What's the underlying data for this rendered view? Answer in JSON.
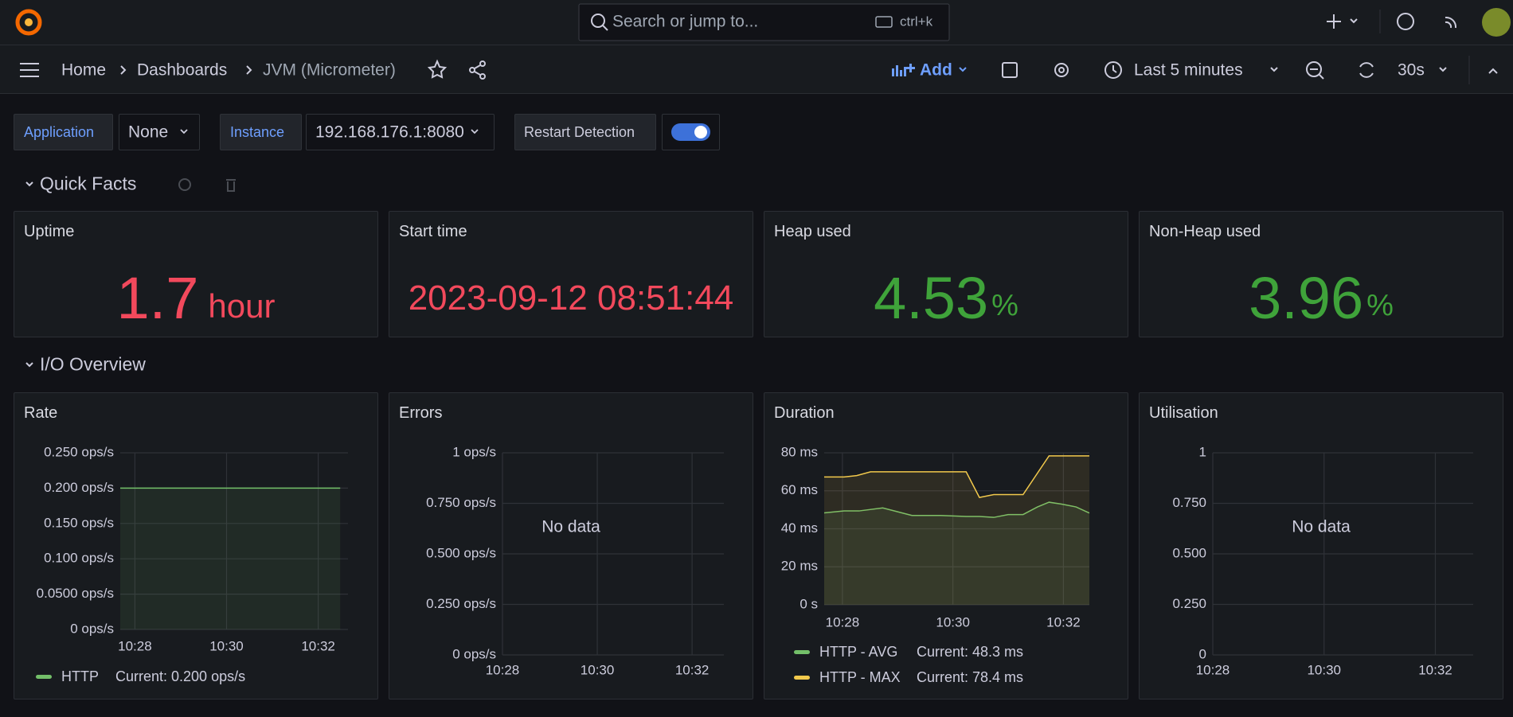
{
  "header": {
    "search_placeholder": "Search or jump to...",
    "search_shortcut": "ctrl+k"
  },
  "breadcrumbs": [
    "Home",
    "Dashboards",
    "JVM (Micrometer)"
  ],
  "toolbar": {
    "add": "Add",
    "time_range": "Last 5 minutes",
    "refresh": "30s"
  },
  "variables": {
    "application_label": "Application",
    "application_value": "None",
    "instance_label": "Instance",
    "instance_value": "192.168.176.1:8080",
    "restart_label": "Restart Detection"
  },
  "rows": [
    {
      "title": "Quick Facts",
      "panels": [
        {
          "title": "Uptime",
          "value": 1.7,
          "unit": "hour",
          "color": "#f2495c"
        },
        {
          "title": "Start time",
          "value": "2023-09-12 08:51:44",
          "color": "#f2495c"
        },
        {
          "title": "Heap used",
          "value": 4.53,
          "unit": "%",
          "color": "#3fa33a"
        },
        {
          "title": "Non-Heap used",
          "value": 3.96,
          "unit": "%",
          "color": "#3fa33a"
        }
      ]
    },
    {
      "title": "I/O Overview",
      "panels": [
        {
          "type": "line",
          "title": "Rate",
          "grid": true,
          "xlim": [
            27.68,
            32.65
          ],
          "xticks": [
            {
              "value": 28,
              "label": "10:28"
            },
            {
              "value": 30,
              "label": "10:30"
            },
            {
              "value": 32,
              "label": "10:32"
            }
          ],
          "ylim": [
            0,
            0.25
          ],
          "yticks": [
            {
              "value": 0,
              "label": "0 ops/s"
            },
            {
              "value": 0.05,
              "label": "0.0500 ops/s"
            },
            {
              "value": 0.1,
              "label": "0.100 ops/s"
            },
            {
              "value": 0.15,
              "label": "0.150 ops/s"
            },
            {
              "value": 0.2,
              "label": "0.200 ops/s"
            },
            {
              "value": 0.25,
              "label": "0.250 ops/s"
            }
          ],
          "series": [
            {
              "name": "HTTP",
              "color": "#73bf69",
              "legend_value": "Current: 0.200 ops/s",
              "x": [
                27.68,
                32.48
              ],
              "values": [
                0.2,
                0.2
              ]
            }
          ]
        },
        {
          "type": "line",
          "title": "Errors",
          "grid": true,
          "message": "No data",
          "xlim": [
            28,
            32.67
          ],
          "xticks": [
            {
              "value": 28,
              "label": "10:28"
            },
            {
              "value": 30,
              "label": "10:30"
            },
            {
              "value": 32,
              "label": "10:32"
            }
          ],
          "ylim": [
            0,
            1
          ],
          "yticks": [
            {
              "value": 0,
              "label": "0 ops/s"
            },
            {
              "value": 0.25,
              "label": "0.250 ops/s"
            },
            {
              "value": 0.5,
              "label": "0.500 ops/s"
            },
            {
              "value": 0.75,
              "label": "0.750 ops/s"
            },
            {
              "value": 1,
              "label": "1 ops/s"
            }
          ],
          "series": []
        },
        {
          "type": "line",
          "title": "Duration",
          "grid": true,
          "xlim": [
            27.67,
            32.47
          ],
          "xticks": [
            {
              "value": 28,
              "label": "10:28"
            },
            {
              "value": 30,
              "label": "10:30"
            },
            {
              "value": 32,
              "label": "10:32"
            }
          ],
          "ylim": [
            0,
            80
          ],
          "yticks": [
            {
              "value": 0,
              "label": "0 s"
            },
            {
              "value": 20,
              "label": "20 ms"
            },
            {
              "value": 40,
              "label": "40 ms"
            },
            {
              "value": 60,
              "label": "60 ms"
            },
            {
              "value": 80,
              "label": "80 ms"
            }
          ],
          "series": [
            {
              "name": "HTTP - AVG",
              "color": "#73bf69",
              "legend_value": "Current: 48.3 ms",
              "x": [
                27.67,
                28.03,
                28.3,
                28.73,
                29.26,
                29.78,
                30.24,
                30.48,
                30.74,
                31.0,
                31.27,
                31.53,
                31.74,
                31.97,
                32.23,
                32.47
              ],
              "values": [
                48.4,
                49.4,
                49.4,
                51,
                47,
                47,
                46.5,
                46.5,
                46,
                47.5,
                47.5,
                51.5,
                54,
                53,
                51.5,
                48.3
              ]
            },
            {
              "name": "HTTP - MAX",
              "color": "#f2c94c",
              "legend_value": "Current: 78.4 ms",
              "x": [
                27.67,
                28.03,
                28.26,
                28.51,
                30.24,
                30.48,
                30.74,
                31.27,
                31.74,
                32.47
              ],
              "values": [
                67.3,
                67.3,
                68,
                70,
                70,
                56.5,
                58,
                58,
                78.4,
                78.4
              ]
            }
          ]
        },
        {
          "type": "line",
          "title": "Utilisation",
          "grid": true,
          "message": "No data",
          "xlim": [
            28,
            32.68
          ],
          "xticks": [
            {
              "value": 28,
              "label": "10:28"
            },
            {
              "value": 30,
              "label": "10:30"
            },
            {
              "value": 32,
              "label": "10:32"
            }
          ],
          "ylim": [
            0,
            1
          ],
          "yticks": [
            0,
            {
              "value": 0.25,
              "label": "0.250"
            },
            {
              "value": 0.5,
              "label": "0.500"
            },
            {
              "value": 0.75,
              "label": "0.750"
            },
            1
          ],
          "series": []
        }
      ]
    }
  ]
}
